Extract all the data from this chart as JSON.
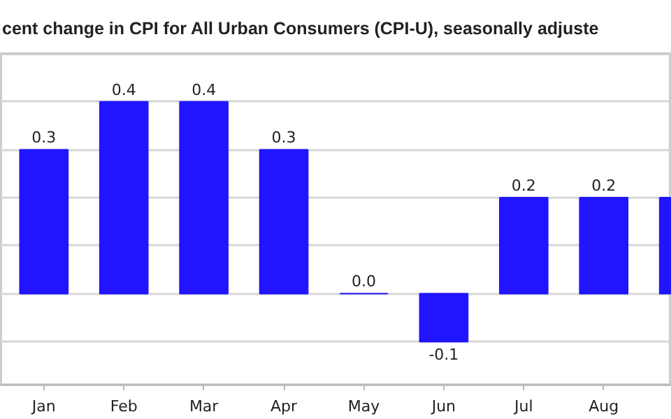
{
  "chart_data": {
    "type": "bar",
    "title": "cent change in CPI for All Urban Consumers (CPI-U), seasonally adjuste",
    "categories": [
      "Jan",
      "Feb",
      "Mar",
      "Apr",
      "May",
      "Jun",
      "Jul",
      "Aug",
      null
    ],
    "values": [
      0.3,
      0.4,
      0.4,
      0.3,
      0.0,
      -0.1,
      0.2,
      0.2,
      0.2
    ],
    "value_labels": [
      "0.3",
      "0.4",
      "0.4",
      "0.3",
      "0.0",
      "-0.1",
      "0.2",
      "0.2",
      null
    ],
    "color": "#2114ff",
    "ylim": [
      -0.19,
      0.5
    ],
    "yticks": [
      {
        "value": -0.1,
        "label": null
      },
      {
        "value": 0,
        "label": null
      },
      {
        "value": 0.1,
        "label": null
      },
      {
        "value": 0.2,
        "label": null
      },
      {
        "value": 0.3,
        "label": null
      },
      {
        "value": 0.4,
        "label": null
      }
    ],
    "grid": "y",
    "tick_labels": "x"
  }
}
